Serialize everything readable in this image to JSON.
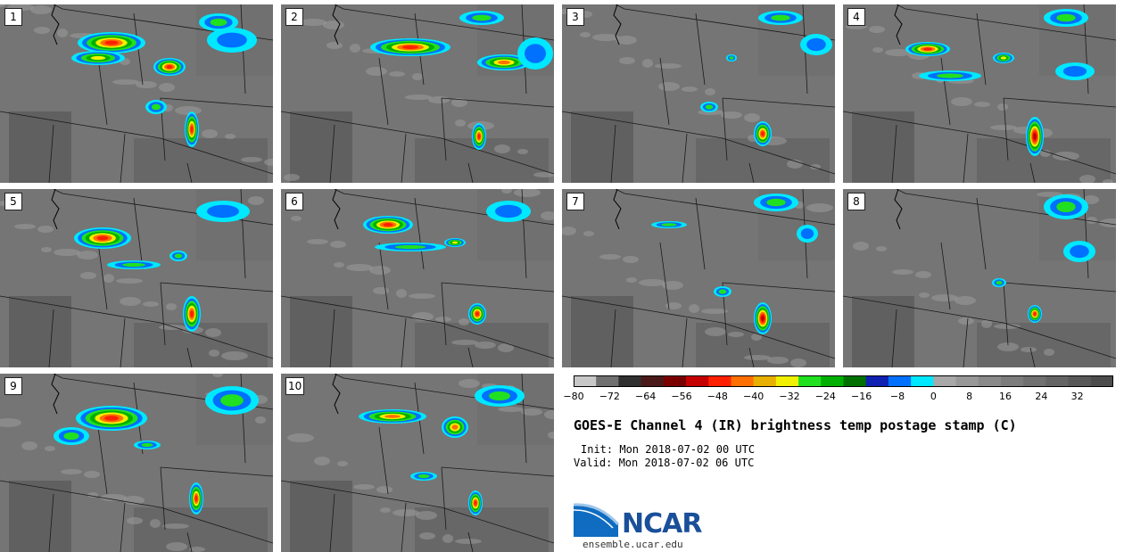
{
  "panels": [
    {
      "label": "1"
    },
    {
      "label": "2"
    },
    {
      "label": "3"
    },
    {
      "label": "4"
    },
    {
      "label": "5"
    },
    {
      "label": "6"
    },
    {
      "label": "7"
    },
    {
      "label": "8"
    },
    {
      "label": "9"
    },
    {
      "label": "10"
    }
  ],
  "colorbar": {
    "min": -80,
    "max": 40,
    "step": 5,
    "tick_labels": [
      "−80",
      "−72",
      "−64",
      "−56",
      "−48",
      "−40",
      "−32",
      "−24",
      "−16",
      "−8",
      "0",
      "8",
      "16",
      "24",
      "32"
    ],
    "tick_values": [
      -80,
      -72,
      -64,
      -56,
      -48,
      -40,
      -32,
      -24,
      -16,
      -8,
      0,
      8,
      16,
      24,
      32
    ],
    "colors": [
      "#c8c8c8",
      "#707070",
      "#303030",
      "#4a1a1a",
      "#7a0000",
      "#c40000",
      "#ff2000",
      "#ff7000",
      "#e8b000",
      "#f0f000",
      "#20e020",
      "#00b000",
      "#007000",
      "#1020b0",
      "#0070ff",
      "#00e8ff",
      "#a8a8a8",
      "#989898",
      "#8a8a8a",
      "#7c7c7c",
      "#707070",
      "#646464",
      "#585858",
      "#4c4c4c"
    ]
  },
  "title": "GOES-E Channel 4 (IR) brightness temp postage stamp (C)",
  "init": "Init: Mon 2018-07-02 00 UTC",
  "valid": "Valid: Mon 2018-07-02 06 UTC",
  "logo": {
    "text": "NCAR",
    "url_text": "ensemble.ucar.edu"
  }
}
